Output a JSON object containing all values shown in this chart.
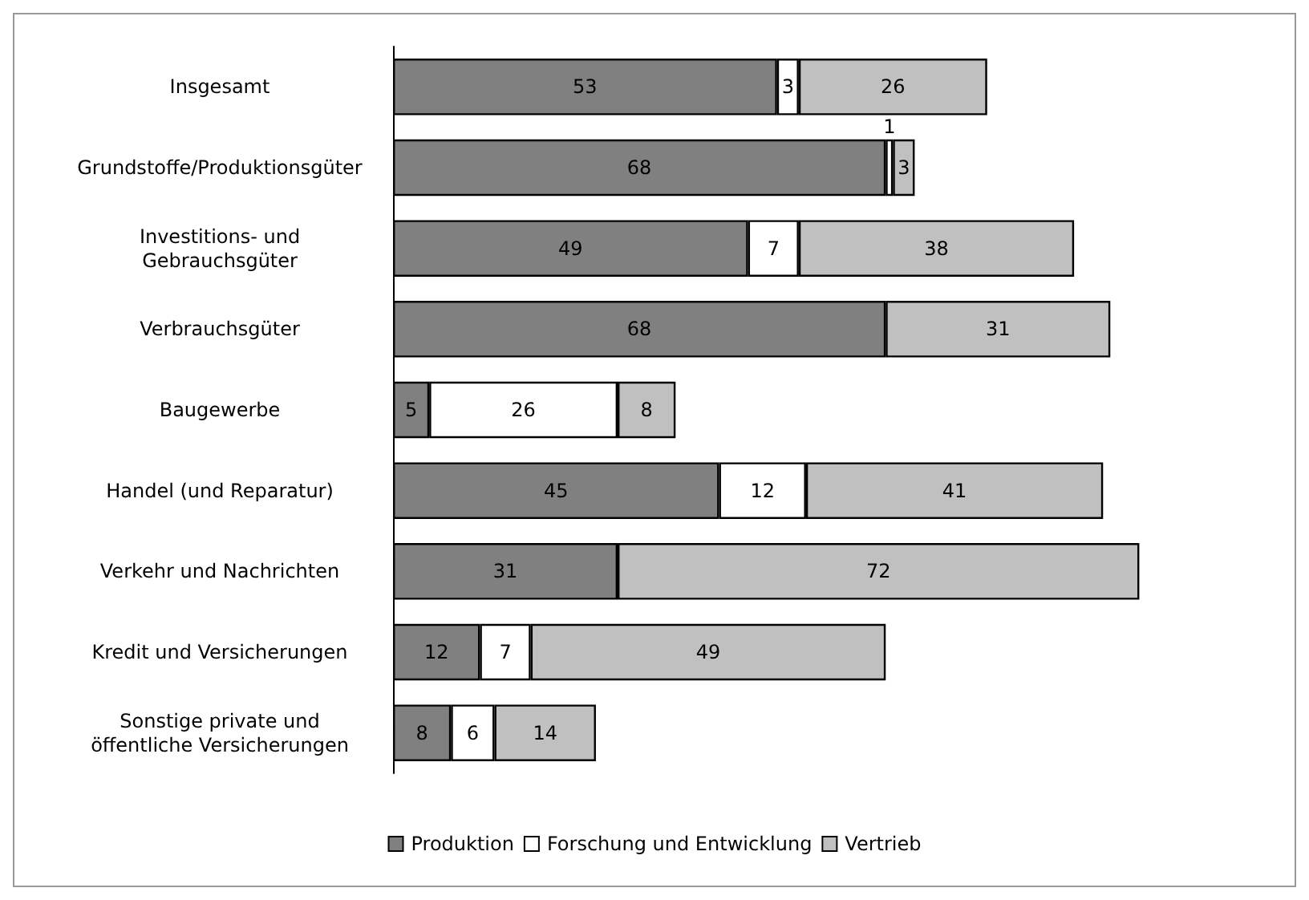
{
  "chart_data": {
    "type": "bar",
    "orientation": "horizontal",
    "stacked": true,
    "data_labels": true,
    "legend": "bottom",
    "grid": false,
    "categories": [
      "Insgesamt",
      "Grundstoffe/Produktionsgüter",
      "Investitions- und\nGebrauchsgüter",
      "Verbrauchsgüter",
      "Baugewerbe",
      "Handel (und Reparatur)",
      "Verkehr und Nachrichten",
      "Kredit und Versicherungen",
      "Sonstige private und\nöffentliche Versicherungen"
    ],
    "series": [
      {
        "name": "Produktion",
        "color": "#808080",
        "values": [
          53,
          68,
          49,
          68,
          5,
          45,
          31,
          12,
          8
        ]
      },
      {
        "name": "Forschung und Entwicklung",
        "color": "#ffffff",
        "values": [
          3,
          1,
          7,
          null,
          26,
          12,
          null,
          7,
          6
        ]
      },
      {
        "name": "Vertrieb",
        "color": "#c0c0c0",
        "values": [
          26,
          3,
          38,
          31,
          8,
          41,
          72,
          49,
          14
        ]
      }
    ]
  }
}
